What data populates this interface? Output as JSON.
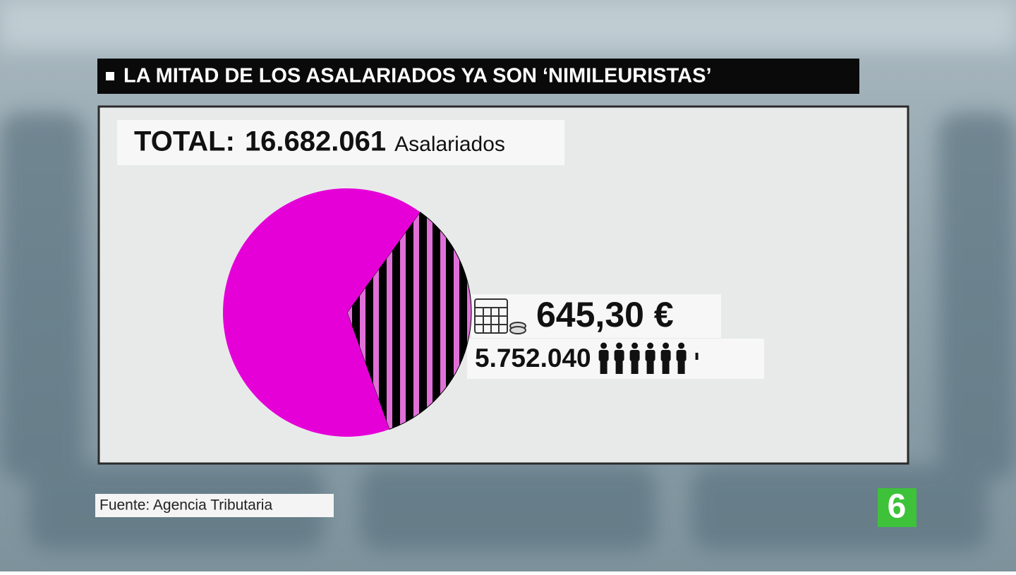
{
  "chart_data": {
    "type": "pie",
    "title": "LA MITAD DE LOS ASALARIADOS YA SON ‘NIMILEURISTAS’",
    "total_text": "TOTAL:",
    "total": {
      "value": 16682061,
      "label": "16.682.061"
    },
    "total_unit": "Asalariados",
    "values": [
      5752040,
      10930021
    ],
    "value_labels": [
      "5.752.040",
      null
    ],
    "colors": [
      "#000000",
      "#e600d8"
    ],
    "hatch": [
      true,
      false
    ],
    "annotation": "645,30 €",
    "source": "Fuente: Agencia Tributaria"
  }
}
